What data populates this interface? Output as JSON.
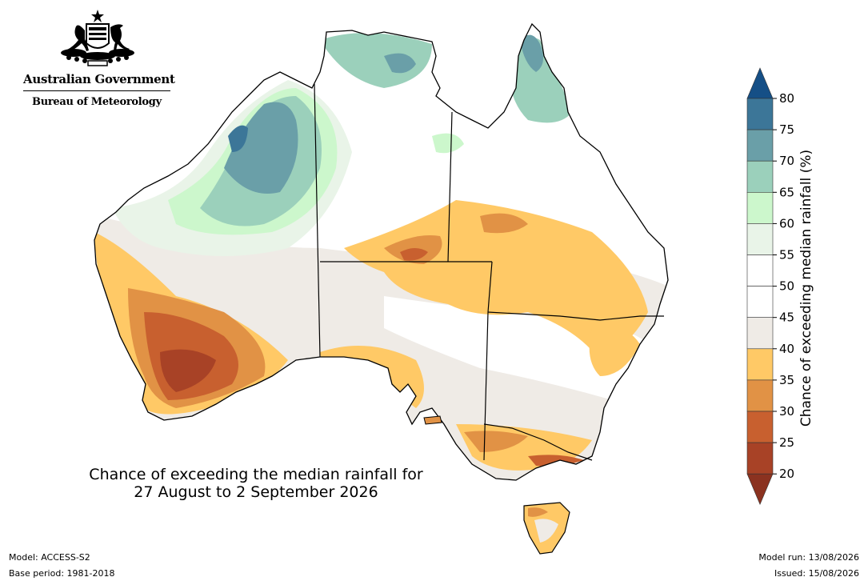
{
  "logo": {
    "government": "Australian Government",
    "bureau": "Bureau of Meteorology",
    "crest_icon": "commonwealth-coat-of-arms-icon"
  },
  "map": {
    "title_line1": "Chance of exceeding the median rainfall for",
    "title_line2": "27 August to 2 September 2026"
  },
  "legend": {
    "title": "Chance of exceeding median rainfall (%)",
    "ticks": [
      "80",
      "75",
      "70",
      "65",
      "60",
      "55",
      "50",
      "45",
      "40",
      "35",
      "30",
      "25",
      "20"
    ],
    "colors": {
      "above_80": "#154f86",
      "75_80": "#3c7698",
      "70_75": "#6a9fa8",
      "65_70": "#9bd0bb",
      "60_65": "#ccf7cc",
      "55_60": "#e9f4e8",
      "50_55": "#ffffff",
      "45_50": "#ffffff",
      "40_45": "#efebe6",
      "35_40": "#ffc966",
      "30_35": "#e19245",
      "25_30": "#c8602f",
      "20_25": "#a84226",
      "below_20": "#8b3220"
    }
  },
  "footer": {
    "model": "Model: ACCESS-S2",
    "base_period": "Base period: 1981-2018",
    "model_run": "Model run: 13/08/2026",
    "issued": "Issued: 15/08/2026"
  }
}
